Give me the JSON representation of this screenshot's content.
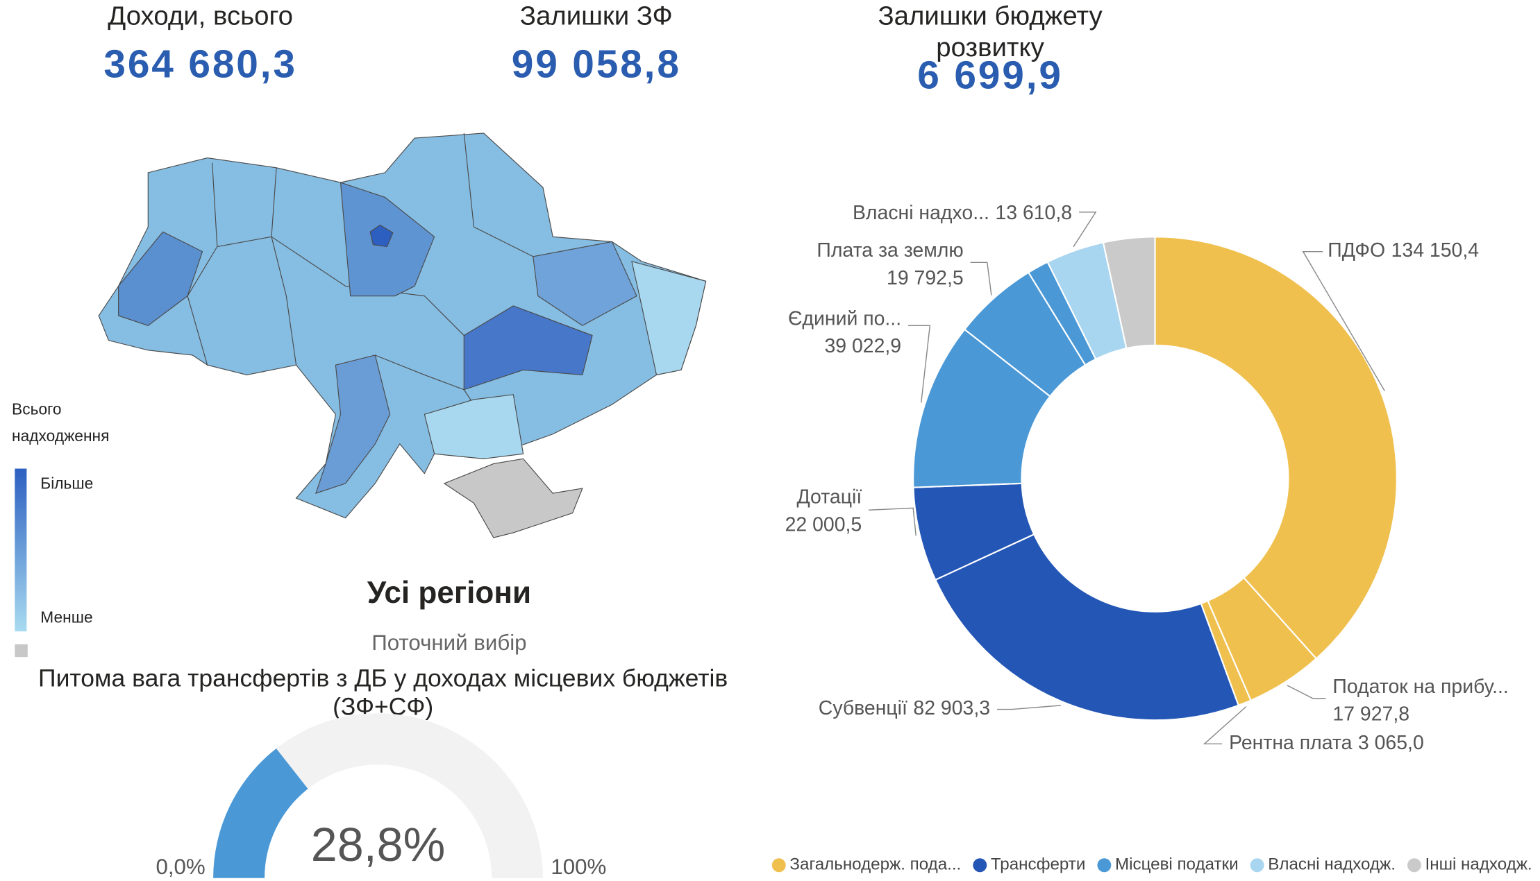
{
  "kpis": [
    {
      "label": [
        "Доходи, всього"
      ],
      "value": "364 680,3"
    },
    {
      "label": [
        "Залишки ЗФ"
      ],
      "value": "99 058,8"
    },
    {
      "label": [
        "Залишки бюджету",
        "розвитку"
      ],
      "value": "6 699,9"
    }
  ],
  "map": {
    "legend_title": [
      "Всього",
      "надходження"
    ],
    "legend_high": "Більше",
    "legend_low": "Менше",
    "selection": "Усі регіони",
    "selection_caption": "Поточний вибір"
  },
  "chart_data": [
    {
      "type": "pie",
      "categories": [
        "ПДФО",
        "Податок на прибу...",
        "Рентна плата",
        "Субвенції",
        "Дотації",
        "Єдиний по...",
        "Плата за землю",
        null,
        "Власні надхо...",
        null
      ],
      "values": [
        134150.4,
        17927.8,
        3065.0,
        82903.3,
        22000.5,
        39022.9,
        19792.5,
        5000,
        13610.8,
        12000
      ],
      "value_labels": [
        "134 150,4",
        "17 927,8",
        "3 065,0",
        "82 903,3",
        "22 000,5",
        "39 022,9",
        "19 792,5",
        null,
        "13 610,8",
        null
      ],
      "colors": [
        "#f0c04e",
        "#f0c04e",
        "#f0c04e",
        "#2356b5",
        "#2356b5",
        "#4a98d6",
        "#4a98d6",
        "#4a98d6",
        "#a8d5ef",
        "#cacaca"
      ],
      "legend": [
        {
          "name": "Загальнодерж. пода...",
          "color": "#f0c04e"
        },
        {
          "name": "Трансферти",
          "color": "#2356b5"
        },
        {
          "name": "Місцеві податки",
          "color": "#4a98d6"
        },
        {
          "name": "Власні надходж.",
          "color": "#a8d5ef"
        },
        {
          "name": "Інші надходж.",
          "color": "#cacaca"
        }
      ]
    },
    {
      "type": "gauge",
      "title": [
        "Питома вага трансфертів з ДБ у доходах місцевих бюджетів",
        "(ЗФ+СФ)"
      ],
      "value": 28.8,
      "value_label": "28,8%",
      "lim": [
        0,
        100
      ],
      "ticks": [
        {
          "value": 0,
          "label": "0,0%"
        },
        {
          "value": 100,
          "label": "100%"
        }
      ],
      "color": "#4a98d6",
      "track_color": "#f2f2f2"
    }
  ]
}
